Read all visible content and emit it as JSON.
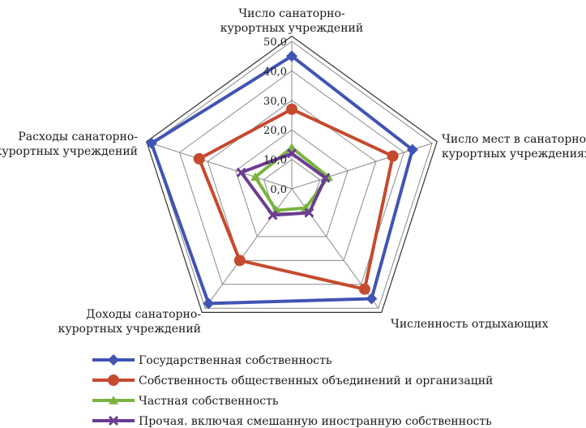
{
  "chart_data": {
    "type": "radar",
    "axes": [
      [
        "Число санаторно-",
        "курортных учреждений"
      ],
      [
        "Число мест в санаторно-",
        "курортных учреждениях"
      ],
      [
        "Численность отдыхающих"
      ],
      [
        "Доходы санаторно-",
        "курортных учреждений"
      ],
      [
        "Расходы санаторно-",
        "курортных учреждений"
      ]
    ],
    "r_range": [
      0,
      50
    ],
    "r_ticks": [
      "0,0",
      "10,0",
      "20,0",
      "30,0",
      "40,0",
      "50,0"
    ],
    "grid": true,
    "legend_position": "bottom",
    "series": [
      {
        "name": "Государственная собственность",
        "color": "#4154b4",
        "marker": "diamond",
        "values": [
          45,
          43,
          46,
          48,
          50
        ]
      },
      {
        "name": "Собственность общественных объединений и организацнй",
        "color": "#c54a2e",
        "marker": "circle",
        "values": [
          27,
          36,
          42,
          30,
          33
        ]
      },
      {
        "name": "Частная собственность",
        "color": "#7ab33f",
        "marker": "triangle",
        "values": [
          14,
          13,
          8,
          9,
          13
        ]
      },
      {
        "name": "Прочая. включая смешанную иностранную собственность",
        "color": "#6a3d92",
        "marker": "x",
        "values": [
          12,
          12,
          10,
          11,
          18
        ]
      }
    ]
  }
}
